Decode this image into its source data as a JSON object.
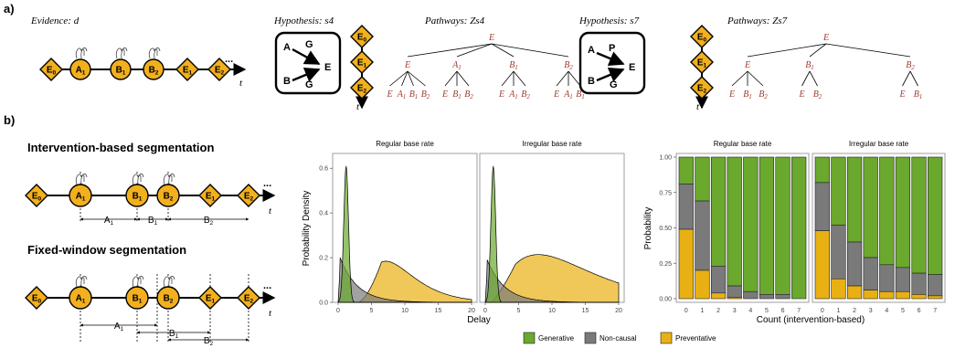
{
  "panel_a": {
    "label": "a)",
    "evidence_title": "Evidence: d",
    "timeline_events": [
      "E0",
      "A1",
      "B1",
      "B2",
      "E1",
      "E2"
    ],
    "ellipsis": "...",
    "time_label": "t",
    "hypotheses": [
      {
        "title": "Hypothesis: s4",
        "pathways_title": "Pathways: Zs4",
        "graph_nodes": [
          "A",
          "G",
          "B",
          "G",
          "E"
        ],
        "events": [
          "E0",
          "E1",
          "E2"
        ],
        "tree": {
          "root": "E",
          "level1": [
            "E",
            "A1",
            "B1",
            "B2"
          ],
          "level2": [
            [
              "E",
              "A1",
              "B1",
              "B2"
            ],
            [
              "E",
              "B1",
              "B2"
            ],
            [
              "E",
              "A1",
              "B2"
            ],
            [
              "E",
              "A1",
              "B1"
            ]
          ]
        }
      },
      {
        "title": "Hypothesis: s7",
        "pathways_title": "Pathways: Zs7",
        "graph_nodes": [
          "A",
          "P",
          "B",
          "G",
          "E"
        ],
        "events": [
          "E0",
          "E1",
          "E2"
        ],
        "tree": {
          "root": "E",
          "level1": [
            "E",
            "B1",
            "B2"
          ],
          "level2": [
            [
              "E",
              "B1",
              "B2"
            ],
            [
              "E",
              "B2"
            ],
            [
              "E",
              "B1"
            ]
          ]
        }
      }
    ]
  },
  "panel_b": {
    "label": "b)",
    "segmentations": [
      {
        "title": "Intervention-based segmentation",
        "segments": [
          "A1",
          "B1",
          "B2"
        ]
      },
      {
        "title": "Fixed-window segmentation",
        "segments": [
          "A1",
          "B1",
          "B2"
        ]
      }
    ],
    "events": [
      "E0",
      "A1",
      "B1",
      "B2",
      "E1",
      "E2"
    ]
  },
  "colors": {
    "generative": "#6aa82e",
    "noncausal": "#7a7a7a",
    "preventative": "#e8b012",
    "node_fill": "#f2b01e",
    "pathway_text": "#a0392f"
  },
  "legend": [
    "Generative",
    "Non-causal",
    "Preventative"
  ],
  "chart_data": [
    {
      "type": "area",
      "panels": [
        "Regular base rate",
        "Irregular base rate"
      ],
      "xlabel": "Delay",
      "ylabel": "Probability Density",
      "xlim": [
        0,
        20
      ],
      "ylim": [
        0,
        0.65
      ],
      "x_ticks": [
        "0",
        "5",
        "10",
        "15",
        "20"
      ],
      "y_ticks": [
        "0.0",
        "0.2",
        "0.4",
        "0.6"
      ],
      "panel_series": [
        [
          {
            "name": "Generative",
            "peak_x": 1.2,
            "peak_y": 0.61
          },
          {
            "name": "Non-causal",
            "peak_x": 1.5,
            "peak_y": 0.2
          },
          {
            "name": "Preventative",
            "peak_x": 6.5,
            "peak_y": 0.18
          }
        ],
        [
          {
            "name": "Generative",
            "peak_x": 1.2,
            "peak_y": 0.61
          },
          {
            "name": "Non-causal",
            "peak_x": 1.0,
            "peak_y": 0.19
          },
          {
            "name": "Preventative",
            "peak_x": 4.5,
            "peak_y": 0.17
          }
        ]
      ]
    },
    {
      "type": "bar",
      "stacked": true,
      "panels": [
        "Regular base rate",
        "Irregular base rate"
      ],
      "xlabel": "Count (intervention-based)",
      "ylabel": "Probability",
      "categories": [
        "0",
        "1",
        "2",
        "3",
        "4",
        "5",
        "6",
        "7"
      ],
      "ylim": [
        0,
        1
      ],
      "y_ticks": [
        "0.00",
        "0.25",
        "0.50",
        "0.75",
        "1.00"
      ],
      "panel_values": [
        {
          "preventative": [
            0.49,
            0.2,
            0.04,
            0.01,
            0.0,
            0.0,
            0.0,
            0.0
          ],
          "noncausal": [
            0.32,
            0.49,
            0.19,
            0.08,
            0.05,
            0.03,
            0.03,
            0.0
          ]
        },
        {
          "preventative": [
            0.48,
            0.14,
            0.09,
            0.06,
            0.05,
            0.05,
            0.03,
            0.02
          ],
          "noncausal": [
            0.34,
            0.38,
            0.31,
            0.23,
            0.19,
            0.17,
            0.15,
            0.15
          ]
        }
      ]
    }
  ]
}
